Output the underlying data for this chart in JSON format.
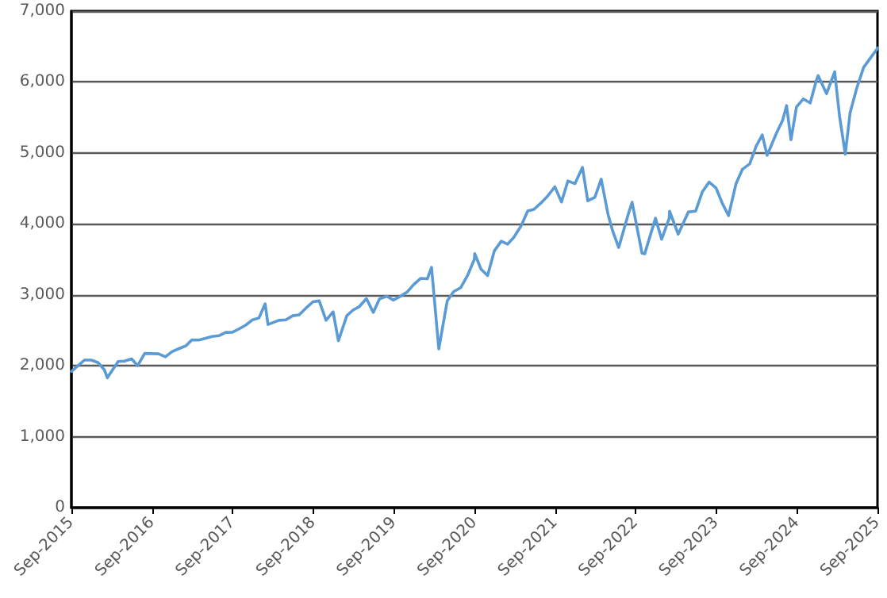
{
  "chart_data": {
    "type": "line",
    "x": [
      "2015-09-01",
      "2015-10-30",
      "2015-11-30",
      "2015-12-31",
      "2016-01-29",
      "2016-02-11",
      "2016-03-31",
      "2016-04-29",
      "2016-05-31",
      "2016-06-27",
      "2016-07-29",
      "2016-08-31",
      "2016-09-30",
      "2016-10-31",
      "2016-11-30",
      "2016-12-30",
      "2017-01-31",
      "2017-02-28",
      "2017-03-31",
      "2017-04-28",
      "2017-05-31",
      "2017-06-30",
      "2017-07-31",
      "2017-08-31",
      "2017-09-29",
      "2017-10-31",
      "2017-11-30",
      "2017-12-29",
      "2018-01-26",
      "2018-02-08",
      "2018-03-29",
      "2018-04-30",
      "2018-05-31",
      "2018-06-29",
      "2018-07-31",
      "2018-08-31",
      "2018-09-28",
      "2018-10-29",
      "2018-11-30",
      "2018-12-24",
      "2019-01-31",
      "2019-02-28",
      "2019-03-29",
      "2019-04-30",
      "2019-05-31",
      "2019-06-28",
      "2019-07-31",
      "2019-08-30",
      "2019-09-30",
      "2019-10-31",
      "2019-11-29",
      "2019-12-31",
      "2020-01-31",
      "2020-02-19",
      "2020-03-23",
      "2020-04-30",
      "2020-05-29",
      "2020-06-30",
      "2020-07-31",
      "2020-08-31",
      "2020-09-02",
      "2020-09-30",
      "2020-10-30",
      "2020-11-30",
      "2020-12-31",
      "2021-01-29",
      "2021-02-26",
      "2021-03-31",
      "2021-04-30",
      "2021-05-28",
      "2021-06-30",
      "2021-07-30",
      "2021-08-31",
      "2021-09-30",
      "2021-10-29",
      "2021-11-30",
      "2022-01-03",
      "2022-01-27",
      "2022-02-28",
      "2022-03-29",
      "2022-04-29",
      "2022-05-20",
      "2022-06-16",
      "2022-07-29",
      "2022-08-16",
      "2022-09-30",
      "2022-10-12",
      "2022-11-30",
      "2022-12-28",
      "2023-01-31",
      "2023-02-02",
      "2023-03-13",
      "2023-04-28",
      "2023-05-31",
      "2023-06-30",
      "2023-07-31",
      "2023-08-31",
      "2023-09-29",
      "2023-10-27",
      "2023-11-30",
      "2023-12-29",
      "2024-01-31",
      "2024-02-29",
      "2024-03-28",
      "2024-04-19",
      "2024-05-31",
      "2024-06-28",
      "2024-07-16",
      "2024-08-05",
      "2024-08-30",
      "2024-09-30",
      "2024-10-31",
      "2024-11-29",
      "2024-12-06",
      "2025-01-13",
      "2025-02-19",
      "2025-03-13",
      "2025-04-08",
      "2025-04-30",
      "2025-05-30",
      "2025-06-30",
      "2025-07-31",
      "2025-08-29",
      "2025-09-01"
    ],
    "series": [
      {
        "color": "#5b9bd5",
        "values": [
          1920,
          2080,
          2080,
          2044,
          1940,
          1830,
          2060,
          2065,
          2097,
          2000,
          2174,
          2171,
          2168,
          2126,
          2199,
          2239,
          2279,
          2364,
          2363,
          2384,
          2412,
          2423,
          2470,
          2472,
          2519,
          2575,
          2648,
          2674,
          2873,
          2581,
          2640,
          2648,
          2705,
          2718,
          2816,
          2902,
          2914,
          2641,
          2760,
          2351,
          2704,
          2784,
          2834,
          2946,
          2752,
          2942,
          2980,
          2926,
          2977,
          3038,
          3141,
          3231,
          3226,
          3386,
          2237,
          2912,
          3044,
          3100,
          3271,
          3500,
          3580,
          3363,
          3270,
          3622,
          3756,
          3714,
          3811,
          3973,
          4181,
          4204,
          4298,
          4395,
          4523,
          4308,
          4605,
          4567,
          4797,
          4326,
          4374,
          4631,
          4132,
          3901,
          3666,
          4130,
          4305,
          3586,
          3577,
          4080,
          3783,
          4077,
          4179,
          3855,
          4169,
          4180,
          4450,
          4589,
          4508,
          4288,
          4117,
          4568,
          4770,
          4846,
          5096,
          5254,
          4967,
          5278,
          5460,
          5667,
          5186,
          5648,
          5762,
          5705,
          6032,
          6090,
          5836,
          6144,
          5522,
          4983,
          5569,
          5912,
          6205,
          6339,
          6460,
          6480
        ]
      }
    ],
    "xlim": [
      "2015-09-01",
      "2025-09-01"
    ],
    "xticks": [
      {
        "value": "2015-09-01",
        "label": "Sep-2015"
      },
      {
        "value": "2016-09-01",
        "label": "Sep-2016"
      },
      {
        "value": "2017-09-01",
        "label": "Sep-2017"
      },
      {
        "value": "2018-09-01",
        "label": "Sep-2018"
      },
      {
        "value": "2019-09-01",
        "label": "Sep-2019"
      },
      {
        "value": "2020-09-01",
        "label": "Sep-2020"
      },
      {
        "value": "2021-09-01",
        "label": "Sep-2021"
      },
      {
        "value": "2022-09-01",
        "label": "Sep-2022"
      },
      {
        "value": "2023-09-01",
        "label": "Sep-2023"
      },
      {
        "value": "2024-09-01",
        "label": "Sep-2024"
      },
      {
        "value": "2025-09-01",
        "label": "Sep-2025"
      }
    ],
    "ylim": [
      0,
      7000
    ],
    "yticks": [
      0,
      {
        "value": 1000,
        "label": "1,000"
      },
      {
        "value": 2000,
        "label": "2,000"
      },
      {
        "value": 3000,
        "label": "3,000"
      },
      {
        "value": 4000,
        "label": "4,000"
      },
      {
        "value": 5000,
        "label": "5,000"
      },
      {
        "value": 6000,
        "label": "6,000"
      },
      {
        "value": 7000,
        "label": "7,000"
      }
    ],
    "grid": "y",
    "marker": "none",
    "line_style": "solid"
  }
}
